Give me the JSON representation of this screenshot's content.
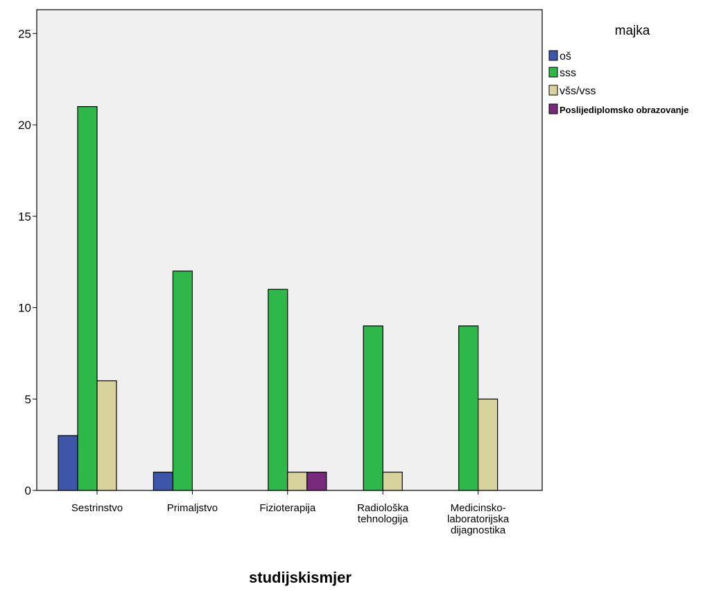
{
  "chart_data": {
    "type": "bar",
    "x_label": "studijskismjer",
    "legend_title": "majka",
    "categories": [
      "Sestrinstvo",
      "Primaljstvo",
      "Fizioterapija",
      "Radiološka\ntehnologija",
      "Medicinsko-\nlaboratorijska\ndijagnostika"
    ],
    "series": [
      {
        "name": "oš",
        "color": "#3d56a8",
        "values": [
          3,
          1,
          0,
          0,
          0
        ]
      },
      {
        "name": "sss",
        "color": "#2eb84a",
        "values": [
          21,
          12,
          11,
          9,
          9
        ]
      },
      {
        "name": "všs/vss",
        "color": "#d8d29c",
        "values": [
          6,
          0,
          1,
          1,
          5
        ]
      },
      {
        "name": "Poslijediplomsko obrazovanje",
        "color": "#7a2a7c",
        "values": [
          0,
          0,
          1,
          0,
          0
        ]
      }
    ],
    "ylim": [
      0,
      26.3
    ],
    "yticks": [
      0,
      5,
      10,
      15,
      20,
      25
    ],
    "legend": "right"
  }
}
